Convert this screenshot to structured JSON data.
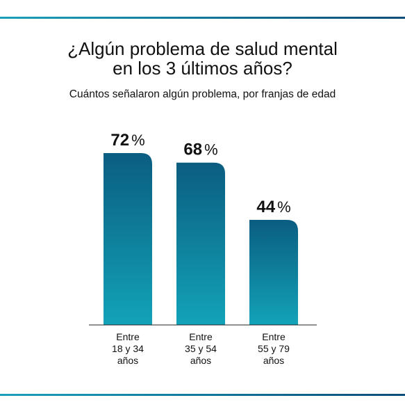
{
  "title_line1": "¿Algún problema de salud mental",
  "title_line2": "en los 3 últimos años?",
  "subtitle": "Cuántos señalaron algún problema, por franjas de edad",
  "colors": {
    "bar_top": "#0b5d80",
    "bar_bottom": "#12a3b8",
    "rule": "#0b4d78"
  },
  "chart_data": {
    "type": "bar",
    "title": "¿Algún problema de salud mental en los 3 últimos años?",
    "subtitle": "Cuántos señalaron algún problema, por franjas de edad",
    "categories": [
      [
        "Entre",
        "18 y 34",
        "años"
      ],
      [
        "Entre",
        "35 y 54",
        "años"
      ],
      [
        "Entre",
        "55 y 79",
        "años"
      ]
    ],
    "values": [
      72,
      68,
      44
    ],
    "unit": "%",
    "ylim": [
      0,
      72
    ],
    "grid": false,
    "legend": "none"
  }
}
